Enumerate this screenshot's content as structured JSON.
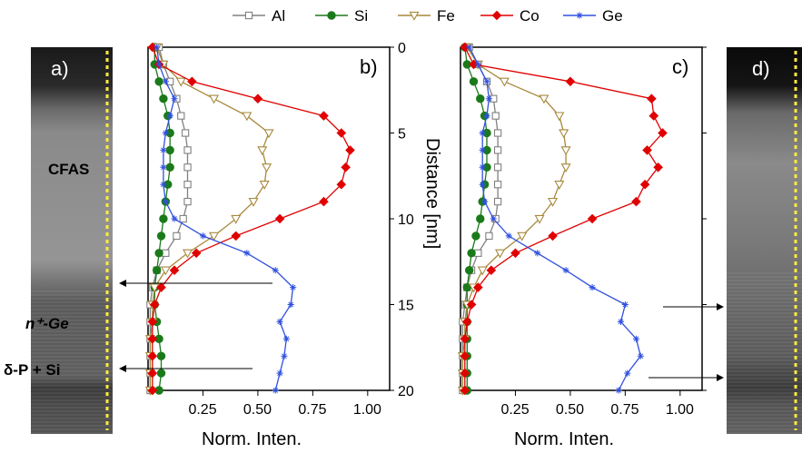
{
  "legend": [
    {
      "name": "Al",
      "color": "#808080",
      "marker": "square"
    },
    {
      "name": "Si",
      "color": "#1a7a1a",
      "marker": "circle"
    },
    {
      "name": "Fe",
      "color": "#a8893c",
      "marker": "triangle-down"
    },
    {
      "name": "Co",
      "color": "#e00000",
      "marker": "diamond"
    },
    {
      "name": "Ge",
      "color": "#3050e0",
      "marker": "star"
    }
  ],
  "panels": {
    "a": {
      "label": "a)",
      "layers": [
        "CFAS",
        "n⁺-Ge",
        "δ-P + Si"
      ]
    },
    "b": {
      "label": "b)"
    },
    "c": {
      "label": "c)"
    },
    "d": {
      "label": "d)"
    }
  },
  "axes": {
    "xlabel": "Norm. Inten.",
    "ylabel": "Distance [nm]",
    "x_ticks": [
      "0.25",
      "0.50",
      "0.75",
      "1.00"
    ],
    "y_ticks": [
      "0",
      "5",
      "10",
      "15",
      "20"
    ]
  },
  "chart_data": [
    {
      "type": "line",
      "panel": "b",
      "xlabel": "Norm. Inten.",
      "ylabel": "Distance [nm]",
      "xlim": [
        0,
        1.1
      ],
      "ylim": [
        0,
        20
      ],
      "y_inverted": true,
      "series": [
        {
          "name": "Al",
          "depth": [
            0,
            1,
            2,
            3,
            4,
            5,
            6,
            7,
            8,
            9,
            10,
            11,
            12,
            13,
            14,
            15,
            16,
            17,
            18,
            19,
            20
          ],
          "intensity": [
            0.05,
            0.07,
            0.1,
            0.13,
            0.15,
            0.17,
            0.18,
            0.18,
            0.18,
            0.18,
            0.16,
            0.13,
            0.08,
            0.04,
            0.02,
            0.01,
            0.01,
            0.01,
            0.01,
            0.01,
            0.01
          ]
        },
        {
          "name": "Si",
          "depth": [
            0,
            1,
            2,
            3,
            4,
            5,
            6,
            7,
            8,
            9,
            10,
            11,
            12,
            13,
            14,
            15,
            16,
            17,
            18,
            19,
            20
          ],
          "intensity": [
            0.03,
            0.03,
            0.05,
            0.07,
            0.09,
            0.1,
            0.1,
            0.1,
            0.09,
            0.08,
            0.07,
            0.06,
            0.05,
            0.04,
            0.03,
            0.03,
            0.04,
            0.05,
            0.06,
            0.06,
            0.05
          ]
        },
        {
          "name": "Fe",
          "depth": [
            0,
            1,
            2,
            3,
            4,
            5,
            6,
            7,
            8,
            9,
            10,
            11,
            12,
            13,
            14,
            15,
            16,
            17,
            18,
            19,
            20
          ],
          "intensity": [
            0.04,
            0.07,
            0.15,
            0.3,
            0.45,
            0.55,
            0.52,
            0.54,
            0.53,
            0.48,
            0.4,
            0.3,
            0.18,
            0.08,
            0.03,
            0.02,
            0.02,
            0.01,
            0.01,
            0.01,
            0.01
          ]
        },
        {
          "name": "Co",
          "depth": [
            0,
            1,
            2,
            3,
            4,
            5,
            6,
            7,
            8,
            9,
            10,
            11,
            12,
            13,
            14,
            15,
            16,
            17,
            18,
            19,
            20
          ],
          "intensity": [
            0.02,
            0.05,
            0.2,
            0.5,
            0.8,
            0.88,
            0.92,
            0.9,
            0.88,
            0.8,
            0.6,
            0.4,
            0.22,
            0.12,
            0.06,
            0.03,
            0.02,
            0.02,
            0.02,
            0.02,
            0.02
          ]
        },
        {
          "name": "Ge",
          "depth": [
            0,
            1,
            2,
            3,
            4,
            5,
            6,
            7,
            8,
            9,
            10,
            11,
            12,
            13,
            14,
            15,
            16,
            17,
            18,
            19,
            20
          ],
          "intensity": [
            0.04,
            0.05,
            0.08,
            0.12,
            0.1,
            0.08,
            0.07,
            0.07,
            0.07,
            0.08,
            0.12,
            0.25,
            0.45,
            0.58,
            0.66,
            0.65,
            0.6,
            0.63,
            0.62,
            0.6,
            0.58
          ]
        }
      ]
    },
    {
      "type": "line",
      "panel": "c",
      "xlabel": "Norm. Inten.",
      "ylabel": "Distance [nm]",
      "xlim": [
        0,
        1.1
      ],
      "ylim": [
        0,
        20
      ],
      "y_inverted": true,
      "series": [
        {
          "name": "Al",
          "depth": [
            0,
            1,
            2,
            3,
            4,
            5,
            6,
            7,
            8,
            9,
            10,
            11,
            12,
            13,
            14,
            15,
            16,
            17,
            18,
            19,
            20
          ],
          "intensity": [
            0.04,
            0.08,
            0.12,
            0.15,
            0.16,
            0.17,
            0.17,
            0.17,
            0.17,
            0.17,
            0.16,
            0.13,
            0.08,
            0.05,
            0.03,
            0.02,
            0.01,
            0.01,
            0.01,
            0.01,
            0.01
          ]
        },
        {
          "name": "Si",
          "depth": [
            0,
            1,
            2,
            3,
            4,
            5,
            6,
            7,
            8,
            9,
            10,
            11,
            12,
            13,
            14,
            15,
            16,
            17,
            18,
            19,
            20
          ],
          "intensity": [
            0.02,
            0.03,
            0.06,
            0.09,
            0.11,
            0.12,
            0.12,
            0.12,
            0.11,
            0.1,
            0.09,
            0.07,
            0.05,
            0.04,
            0.03,
            0.03,
            0.03,
            0.03,
            0.03,
            0.03,
            0.03
          ]
        },
        {
          "name": "Fe",
          "depth": [
            0,
            1,
            2,
            3,
            4,
            5,
            6,
            7,
            8,
            9,
            10,
            11,
            12,
            13,
            14,
            15,
            16,
            17,
            18,
            19,
            20
          ],
          "intensity": [
            0.03,
            0.08,
            0.2,
            0.38,
            0.45,
            0.47,
            0.48,
            0.48,
            0.45,
            0.42,
            0.36,
            0.28,
            0.18,
            0.1,
            0.06,
            0.03,
            0.02,
            0.02,
            0.01,
            0.01,
            0.01
          ]
        },
        {
          "name": "Co",
          "depth": [
            0,
            1,
            2,
            3,
            4,
            5,
            6,
            7,
            8,
            9,
            10,
            11,
            12,
            13,
            14,
            15,
            16,
            17,
            18,
            19,
            20
          ],
          "intensity": [
            0.02,
            0.06,
            0.5,
            0.87,
            0.88,
            0.92,
            0.85,
            0.9,
            0.84,
            0.8,
            0.6,
            0.42,
            0.25,
            0.14,
            0.08,
            0.05,
            0.03,
            0.02,
            0.02,
            0.02,
            0.02
          ]
        },
        {
          "name": "Ge",
          "depth": [
            0,
            1,
            2,
            3,
            4,
            5,
            6,
            7,
            8,
            9,
            10,
            11,
            12,
            13,
            14,
            15,
            16,
            17,
            18,
            19,
            20
          ],
          "intensity": [
            0.04,
            0.08,
            0.12,
            0.13,
            0.12,
            0.1,
            0.1,
            0.1,
            0.1,
            0.11,
            0.15,
            0.22,
            0.35,
            0.48,
            0.6,
            0.75,
            0.73,
            0.8,
            0.82,
            0.76,
            0.72
          ]
        }
      ]
    }
  ]
}
